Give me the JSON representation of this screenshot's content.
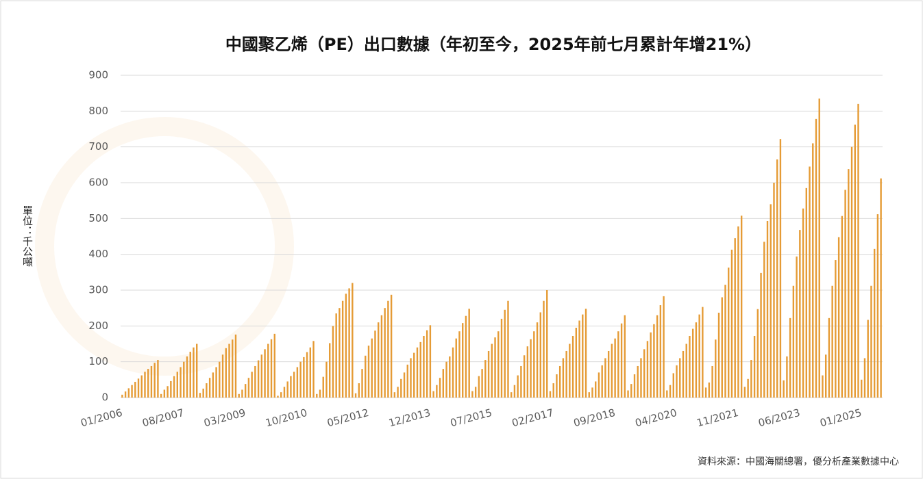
{
  "chart_data": {
    "type": "bar",
    "title": "中國聚乙烯（PE）出口數據（年初至今，2025年前七月累計年增21%）",
    "y_label": "單位：千公噸",
    "source": "資料來源：中國海關總署，優分析產業數據中心",
    "color": "#e59b35",
    "ylim": [
      0,
      900
    ],
    "yticks": [
      0,
      100,
      200,
      300,
      400,
      500,
      600,
      700,
      800,
      900
    ],
    "grid": true,
    "categories": [
      "01/2006",
      null,
      null,
      null,
      null,
      null,
      null,
      null,
      null,
      null,
      null,
      null,
      null,
      null,
      null,
      null,
      null,
      null,
      null,
      "08/2007",
      null,
      null,
      null,
      null,
      null,
      null,
      null,
      null,
      null,
      null,
      null,
      null,
      null,
      null,
      null,
      null,
      null,
      null,
      "03/2009",
      null,
      null,
      null,
      null,
      null,
      null,
      null,
      null,
      null,
      null,
      null,
      null,
      null,
      null,
      null,
      null,
      null,
      null,
      "10/2010",
      null,
      null,
      null,
      null,
      null,
      null,
      null,
      null,
      null,
      null,
      null,
      null,
      null,
      null,
      null,
      null,
      null,
      null,
      "05/2012",
      null,
      null,
      null,
      null,
      null,
      null,
      null,
      null,
      null,
      null,
      null,
      null,
      null,
      null,
      null,
      null,
      null,
      null,
      "12/2013",
      null,
      null,
      null,
      null,
      null,
      null,
      null,
      null,
      null,
      null,
      null,
      null,
      null,
      null,
      null,
      null,
      null,
      null,
      "07/2015",
      null,
      null,
      null,
      null,
      null,
      null,
      null,
      null,
      null,
      null,
      null,
      null,
      null,
      null,
      null,
      null,
      null,
      null,
      "02/2017",
      null,
      null,
      null,
      null,
      null,
      null,
      null,
      null,
      null,
      null,
      null,
      null,
      null,
      null,
      null,
      null,
      null,
      null,
      "09/2018",
      null,
      null,
      null,
      null,
      null,
      null,
      null,
      null,
      null,
      null,
      null,
      null,
      null,
      null,
      null,
      null,
      null,
      null,
      "04/2020",
      null,
      null,
      null,
      null,
      null,
      null,
      null,
      null,
      null,
      null,
      null,
      null,
      null,
      null,
      null,
      null,
      null,
      null,
      "11/2021",
      null,
      null,
      null,
      null,
      null,
      null,
      null,
      null,
      null,
      null,
      null,
      null,
      null,
      null,
      null,
      null,
      null,
      null,
      "06/2023",
      null,
      null,
      null,
      null,
      null,
      null,
      null,
      null,
      null,
      null,
      null,
      null,
      null,
      null,
      null,
      null,
      null,
      null,
      "01/2025",
      null,
      null,
      null,
      null,
      null,
      null
    ],
    "values": [
      8,
      17,
      26,
      35,
      44,
      53,
      62,
      72,
      80,
      88,
      97,
      105,
      10,
      22,
      32,
      46,
      60,
      72,
      85,
      100,
      115,
      128,
      140,
      150,
      13,
      25,
      40,
      55,
      70,
      85,
      100,
      120,
      138,
      150,
      162,
      176,
      10,
      22,
      38,
      55,
      72,
      88,
      104,
      120,
      135,
      150,
      163,
      178,
      5,
      15,
      30,
      45,
      60,
      72,
      85,
      100,
      113,
      127,
      140,
      158,
      10,
      22,
      58,
      100,
      152,
      200,
      235,
      250,
      270,
      290,
      305,
      320,
      12,
      40,
      80,
      117,
      145,
      165,
      187,
      210,
      230,
      250,
      270,
      287,
      15,
      30,
      52,
      70,
      92,
      110,
      125,
      140,
      155,
      172,
      188,
      202,
      18,
      35,
      55,
      80,
      100,
      115,
      140,
      165,
      185,
      208,
      228,
      248,
      18,
      30,
      60,
      80,
      105,
      130,
      150,
      168,
      185,
      220,
      245,
      270,
      15,
      35,
      62,
      88,
      118,
      143,
      163,
      185,
      210,
      238,
      270,
      300,
      18,
      40,
      65,
      88,
      110,
      130,
      150,
      172,
      195,
      215,
      232,
      248,
      15,
      28,
      45,
      70,
      90,
      110,
      130,
      150,
      165,
      185,
      207,
      230,
      20,
      38,
      65,
      88,
      110,
      135,
      158,
      182,
      205,
      230,
      258,
      283,
      20,
      35,
      68,
      90,
      110,
      130,
      150,
      172,
      192,
      210,
      232,
      253,
      28,
      42,
      88,
      162,
      237,
      280,
      315,
      363,
      413,
      445,
      478,
      508,
      30,
      52,
      105,
      172,
      247,
      348,
      435,
      493,
      540,
      600,
      665,
      722,
      48,
      115,
      222,
      312,
      394,
      468,
      528,
      585,
      645,
      710,
      778,
      835,
      62,
      120,
      222,
      312,
      384,
      448,
      507,
      580,
      638,
      700,
      762,
      820,
      50,
      110,
      217,
      312,
      415,
      512,
      612
    ]
  }
}
